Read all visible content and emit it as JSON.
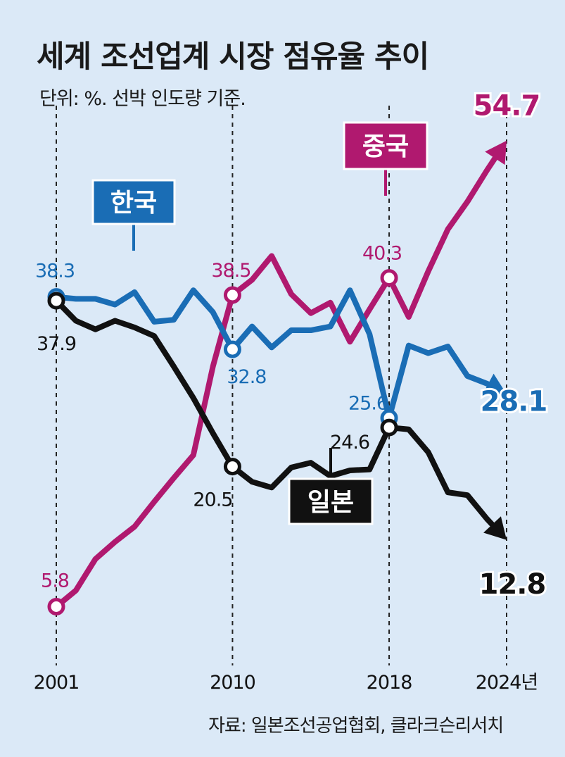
{
  "header": {
    "title": "세계 조선업계 시장 점유율 추이",
    "subtitle": "단위: %. 선박 인도량 기준."
  },
  "source": "자료: 일본조선공업협회, 클라크슨리서치",
  "chart_data": {
    "type": "line",
    "title": "세계 조선업계 시장 점유율 추이",
    "unit": "단위: %. 선박 인도량 기준.",
    "x_tick_labels": [
      "2001",
      "2010",
      "2018",
      "2024년"
    ],
    "x_ticks": [
      2001,
      2010,
      2018,
      2024
    ],
    "ylim": [
      0,
      60
    ],
    "grid": false,
    "series": [
      {
        "name": "중국",
        "color": "#b0196f",
        "x": [
          2001,
          2002,
          2003,
          2004,
          2005,
          2006,
          2007,
          2008,
          2009,
          2010,
          2011,
          2012,
          2013,
          2014,
          2015,
          2016,
          2017,
          2018,
          2019,
          2020,
          2021,
          2022,
          2023,
          2024
        ],
        "values": [
          5.8,
          7.5,
          10.8,
          12.6,
          14.2,
          16.8,
          19.3,
          21.7,
          31.0,
          38.5,
          40.1,
          42.6,
          38.6,
          36.6,
          37.7,
          33.6,
          37.0,
          40.3,
          36.2,
          41.0,
          45.4,
          48.3,
          51.6,
          54.7
        ],
        "labels": [
          {
            "x": 2001,
            "text": "5.8"
          },
          {
            "x": 2010,
            "text": "38.5"
          },
          {
            "x": 2018,
            "text": "40.3"
          },
          {
            "x": 2024,
            "text": "54.7"
          }
        ],
        "tag": "중국"
      },
      {
        "name": "한국",
        "color": "#1a6db5",
        "x": [
          2001,
          2002,
          2003,
          2004,
          2005,
          2006,
          2007,
          2008,
          2009,
          2010,
          2011,
          2012,
          2013,
          2014,
          2015,
          2016,
          2017,
          2018,
          2019,
          2020,
          2021,
          2022,
          2023,
          2024
        ],
        "values": [
          38.3,
          38.1,
          38.1,
          37.5,
          38.8,
          35.7,
          35.9,
          39.0,
          36.7,
          32.8,
          35.2,
          33.0,
          34.8,
          34.8,
          35.2,
          39.0,
          34.4,
          25.6,
          33.2,
          32.4,
          33.1,
          30.0,
          29.2,
          28.1
        ],
        "labels": [
          {
            "x": 2001,
            "text": "38.3"
          },
          {
            "x": 2010,
            "text": "32.8"
          },
          {
            "x": 2018,
            "text": "25.6"
          },
          {
            "x": 2024,
            "text": "28.1"
          }
        ],
        "tag": "한국"
      },
      {
        "name": "일본",
        "color": "#111111",
        "x": [
          2001,
          2002,
          2003,
          2004,
          2005,
          2006,
          2007,
          2008,
          2009,
          2010,
          2011,
          2012,
          2013,
          2014,
          2015,
          2016,
          2017,
          2018,
          2019,
          2020,
          2021,
          2022,
          2023,
          2024
        ],
        "values": [
          37.9,
          35.8,
          34.9,
          35.8,
          35.1,
          34.2,
          31.0,
          27.7,
          24.0,
          20.5,
          18.9,
          18.3,
          20.4,
          20.9,
          19.5,
          20.1,
          20.2,
          24.6,
          24.4,
          22.0,
          17.8,
          17.5,
          15.0,
          12.8
        ],
        "labels": [
          {
            "x": 2001,
            "text": "37.9"
          },
          {
            "x": 2010,
            "text": "20.5"
          },
          {
            "x": 2018,
            "text": "24.6"
          },
          {
            "x": 2024,
            "text": "12.8"
          }
        ],
        "tag": "일본"
      }
    ]
  }
}
